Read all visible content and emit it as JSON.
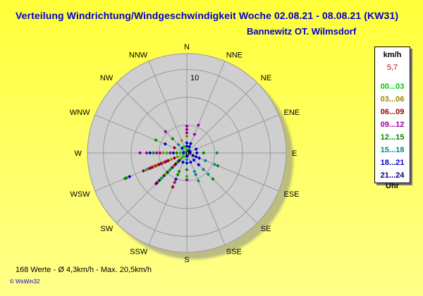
{
  "header": {
    "title": "Verteilung Windrichtung/Windgeschwindigkeit  Woche 02.08.21 - 08.08.21 (KW31)",
    "subtitle": "Bannewitz OT. Wilmsdorf"
  },
  "legend": {
    "unit": "km/h",
    "value": "5,7",
    "footer": "Uhr",
    "items": [
      {
        "label": "00...03",
        "color": "#00cc00"
      },
      {
        "label": "03...06",
        "color": "#998800"
      },
      {
        "label": "06...09",
        "color": "#990000"
      },
      {
        "label": "09...12",
        "color": "#990099"
      },
      {
        "label": "12...15",
        "color": "#008800"
      },
      {
        "label": "15...18",
        "color": "#008888"
      },
      {
        "label": "18...21",
        "color": "#0000cc"
      },
      {
        "label": "21...24",
        "color": "#000088"
      }
    ]
  },
  "footer": {
    "stats": "168 Werte   -   Ø 4,3km/h  -  Max. 20,5km/h",
    "credit": "© WsWin32"
  },
  "chart_data": {
    "type": "scatter",
    "subtype": "polar-wind-rose",
    "directions": [
      "N",
      "NNE",
      "NE",
      "ENE",
      "E",
      "ESE",
      "SE",
      "SSE",
      "S",
      "SSW",
      "SW",
      "WSW",
      "W",
      "WNW",
      "NW",
      "NNW"
    ],
    "radial_tick_label": "10",
    "rmax": 20,
    "center_marker": "0",
    "points": [
      {
        "dir": "WSW",
        "speed": 20,
        "c": 4
      },
      {
        "dir": "WSW",
        "speed": 19.5,
        "c": 4
      },
      {
        "dir": "WSW",
        "speed": 18.5,
        "c": 6
      },
      {
        "dir": "WSW",
        "speed": 14,
        "c": 2
      },
      {
        "dir": "WSW",
        "speed": 13,
        "c": 5
      },
      {
        "dir": "WSW",
        "speed": 12.5,
        "c": 1
      },
      {
        "dir": "WSW",
        "speed": 12,
        "c": 2
      },
      {
        "dir": "WSW",
        "speed": 11.5,
        "c": 3
      },
      {
        "dir": "WSW",
        "speed": 11,
        "c": 2
      },
      {
        "dir": "WSW",
        "speed": 10.5,
        "c": 1
      },
      {
        "dir": "WSW",
        "speed": 10,
        "c": 2
      },
      {
        "dir": "WSW",
        "speed": 9.5,
        "c": 1
      },
      {
        "dir": "WSW",
        "speed": 9,
        "c": 2
      },
      {
        "dir": "WSW",
        "speed": 8.5,
        "c": 3
      },
      {
        "dir": "WSW",
        "speed": 8,
        "c": 2
      },
      {
        "dir": "WSW",
        "speed": 7.5,
        "c": 1
      },
      {
        "dir": "WSW",
        "speed": 7,
        "c": 2
      },
      {
        "dir": "WSW",
        "speed": 6.5,
        "c": 3
      },
      {
        "dir": "WSW",
        "speed": 6,
        "c": 2
      },
      {
        "dir": "WSW",
        "speed": 5,
        "c": 1
      },
      {
        "dir": "WSW",
        "speed": 4,
        "c": 2
      },
      {
        "dir": "WSW",
        "speed": 3,
        "c": 1
      },
      {
        "dir": "SW",
        "speed": 13,
        "c": 2
      },
      {
        "dir": "SW",
        "speed": 12.5,
        "c": 7
      },
      {
        "dir": "SW",
        "speed": 12,
        "c": 1
      },
      {
        "dir": "SW",
        "speed": 11.5,
        "c": 6
      },
      {
        "dir": "SW",
        "speed": 11,
        "c": 0
      },
      {
        "dir": "SW",
        "speed": 10.5,
        "c": 5
      },
      {
        "dir": "SW",
        "speed": 10,
        "c": 1
      },
      {
        "dir": "SW",
        "speed": 9.5,
        "c": 6
      },
      {
        "dir": "SW",
        "speed": 9,
        "c": 1
      },
      {
        "dir": "SW",
        "speed": 8.5,
        "c": 0
      },
      {
        "dir": "SW",
        "speed": 8,
        "c": 6
      },
      {
        "dir": "SW",
        "speed": 7.5,
        "c": 1
      },
      {
        "dir": "SW",
        "speed": 7,
        "c": 5
      },
      {
        "dir": "SW",
        "speed": 6.5,
        "c": 0
      },
      {
        "dir": "SW",
        "speed": 6,
        "c": 6
      },
      {
        "dir": "SW",
        "speed": 5.5,
        "c": 1
      },
      {
        "dir": "SW",
        "speed": 5,
        "c": 2
      },
      {
        "dir": "SW",
        "speed": 4.5,
        "c": 6
      },
      {
        "dir": "SW",
        "speed": 4,
        "c": 0
      },
      {
        "dir": "SW",
        "speed": 3.5,
        "c": 2
      },
      {
        "dir": "SW",
        "speed": 3,
        "c": 6
      },
      {
        "dir": "SW",
        "speed": 2.5,
        "c": 0
      },
      {
        "dir": "SW",
        "speed": 2,
        "c": 1
      },
      {
        "dir": "SW",
        "speed": 1.5,
        "c": 0
      },
      {
        "dir": "SSW",
        "speed": 11,
        "c": 2
      },
      {
        "dir": "SSW",
        "speed": 9.5,
        "c": 3
      },
      {
        "dir": "SSW",
        "speed": 8.5,
        "c": 6
      },
      {
        "dir": "SSW",
        "speed": 7,
        "c": 4
      },
      {
        "dir": "SSW",
        "speed": 6,
        "c": 4
      },
      {
        "dir": "SSW",
        "speed": 3,
        "c": 6
      },
      {
        "dir": "S",
        "speed": 8,
        "c": 3
      },
      {
        "dir": "S",
        "speed": 7,
        "c": 0
      },
      {
        "dir": "S",
        "speed": 5,
        "c": 4
      },
      {
        "dir": "S",
        "speed": 3,
        "c": 6
      },
      {
        "dir": "S",
        "speed": 2,
        "c": 5
      },
      {
        "dir": "S",
        "speed": 1,
        "c": 6
      },
      {
        "dir": "SSE",
        "speed": 9,
        "c": 5
      },
      {
        "dir": "SSE",
        "speed": 7,
        "c": 5
      },
      {
        "dir": "SSE",
        "speed": 6,
        "c": 5
      },
      {
        "dir": "SSE",
        "speed": 3,
        "c": 6
      },
      {
        "dir": "SE",
        "speed": 11,
        "c": 4
      },
      {
        "dir": "SE",
        "speed": 9,
        "c": 5
      },
      {
        "dir": "SE",
        "speed": 7,
        "c": 5
      },
      {
        "dir": "SE",
        "speed": 5,
        "c": 6
      },
      {
        "dir": "SE",
        "speed": 3,
        "c": 6
      },
      {
        "dir": "ESE",
        "speed": 10,
        "c": 4
      },
      {
        "dir": "ESE",
        "speed": 9,
        "c": 5
      },
      {
        "dir": "ESE",
        "speed": 6,
        "c": 5
      },
      {
        "dir": "ESE",
        "speed": 4,
        "c": 6
      },
      {
        "dir": "ESE",
        "speed": 3,
        "c": 6
      },
      {
        "dir": "ESE",
        "speed": 2,
        "c": 7
      },
      {
        "dir": "E",
        "speed": 9,
        "c": 5
      },
      {
        "dir": "E",
        "speed": 5,
        "c": 4
      },
      {
        "dir": "E",
        "speed": 3,
        "c": 6
      },
      {
        "dir": "E",
        "speed": 1,
        "c": 7
      },
      {
        "dir": "ENE",
        "speed": 3,
        "c": 6
      },
      {
        "dir": "ENE",
        "speed": 1,
        "c": 6
      },
      {
        "dir": "NE",
        "speed": 1,
        "c": 6
      },
      {
        "dir": "NNE",
        "speed": 9,
        "c": 3
      },
      {
        "dir": "NNE",
        "speed": 6,
        "c": 3
      },
      {
        "dir": "NNE",
        "speed": 3,
        "c": 6
      },
      {
        "dir": "NNE",
        "speed": 2,
        "c": 6
      },
      {
        "dir": "N",
        "speed": 8,
        "c": 3
      },
      {
        "dir": "N",
        "speed": 7,
        "c": 3
      },
      {
        "dir": "N",
        "speed": 6,
        "c": 3
      },
      {
        "dir": "N",
        "speed": 5,
        "c": 1
      },
      {
        "dir": "N",
        "speed": 3,
        "c": 6
      },
      {
        "dir": "N",
        "speed": 2,
        "c": 6
      },
      {
        "dir": "N",
        "speed": 1,
        "c": 0
      },
      {
        "dir": "NNW",
        "speed": 4,
        "c": 1
      },
      {
        "dir": "NNW",
        "speed": 2,
        "c": 0
      },
      {
        "dir": "NW",
        "speed": 9,
        "c": 3
      },
      {
        "dir": "NW",
        "speed": 6,
        "c": 4
      },
      {
        "dir": "NW",
        "speed": 3.5,
        "c": 5
      },
      {
        "dir": "NW",
        "speed": 2,
        "c": 6
      },
      {
        "dir": "WNW",
        "speed": 10,
        "c": 4
      },
      {
        "dir": "WNW",
        "speed": 7,
        "c": 6
      },
      {
        "dir": "WNW",
        "speed": 4,
        "c": 2
      },
      {
        "dir": "WNW",
        "speed": 1,
        "c": 0
      },
      {
        "dir": "W",
        "speed": 14,
        "c": 3
      },
      {
        "dir": "W",
        "speed": 12,
        "c": 3
      },
      {
        "dir": "W",
        "speed": 11,
        "c": 6
      },
      {
        "dir": "W",
        "speed": 10,
        "c": 4
      },
      {
        "dir": "W",
        "speed": 9,
        "c": 3
      },
      {
        "dir": "W",
        "speed": 8,
        "c": 3
      },
      {
        "dir": "W",
        "speed": 7,
        "c": 1
      },
      {
        "dir": "W",
        "speed": 6,
        "c": 0
      },
      {
        "dir": "W",
        "speed": 5,
        "c": 3
      },
      {
        "dir": "W",
        "speed": 4,
        "c": 6
      },
      {
        "dir": "W",
        "speed": 3,
        "c": 4
      },
      {
        "dir": "W",
        "speed": 2,
        "c": 0
      },
      {
        "dir": "W",
        "speed": 1,
        "c": 6
      }
    ]
  }
}
